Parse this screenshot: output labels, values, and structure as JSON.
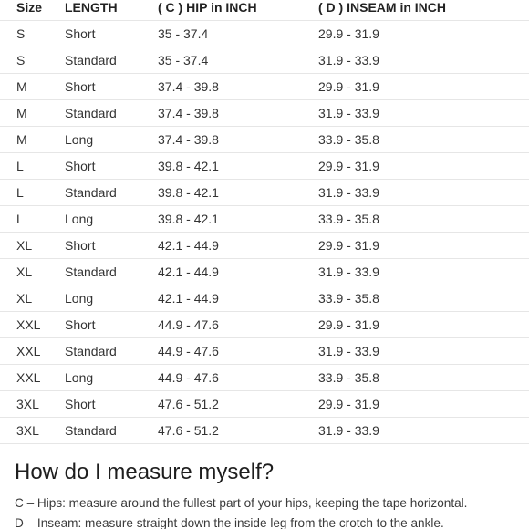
{
  "table": {
    "headers": [
      "Size",
      "LENGTH",
      "( C ) HIP in INCH",
      "( D ) INSEAM in INCH"
    ],
    "rows": [
      [
        "S",
        "Short",
        "35 - 37.4",
        "29.9 - 31.9"
      ],
      [
        "S",
        "Standard",
        "35 - 37.4",
        "31.9 - 33.9"
      ],
      [
        "M",
        "Short",
        "37.4 - 39.8",
        "29.9 - 31.9"
      ],
      [
        "M",
        "Standard",
        "37.4 - 39.8",
        "31.9 - 33.9"
      ],
      [
        "M",
        "Long",
        "37.4 - 39.8",
        "33.9 - 35.8"
      ],
      [
        "L",
        "Short",
        "39.8 - 42.1",
        "29.9 - 31.9"
      ],
      [
        "L",
        "Standard",
        "39.8 - 42.1",
        "31.9 - 33.9"
      ],
      [
        "L",
        "Long",
        "39.8 - 42.1",
        "33.9 - 35.8"
      ],
      [
        "XL",
        "Short",
        "42.1 - 44.9",
        "29.9 - 31.9"
      ],
      [
        "XL",
        "Standard",
        "42.1 - 44.9",
        "31.9 - 33.9"
      ],
      [
        "XL",
        "Long",
        "42.1 - 44.9",
        "33.9 - 35.8"
      ],
      [
        "XXL",
        "Short",
        "44.9 - 47.6",
        "29.9 - 31.9"
      ],
      [
        "XXL",
        "Standard",
        "44.9 - 47.6",
        "31.9 - 33.9"
      ],
      [
        "XXL",
        "Long",
        "44.9 - 47.6",
        "33.9 - 35.8"
      ],
      [
        "3XL",
        "Short",
        "47.6 - 51.2",
        "29.9 - 31.9"
      ],
      [
        "3XL",
        "Standard",
        "47.6 - 51.2",
        "31.9 - 33.9"
      ]
    ]
  },
  "measure": {
    "title": "How do I measure myself?",
    "note_c": "C – Hips: measure around the fullest part of your hips, keeping the tape horizontal.",
    "note_d": "D – Inseam: measure straight down the inside leg from the crotch to the ankle."
  }
}
